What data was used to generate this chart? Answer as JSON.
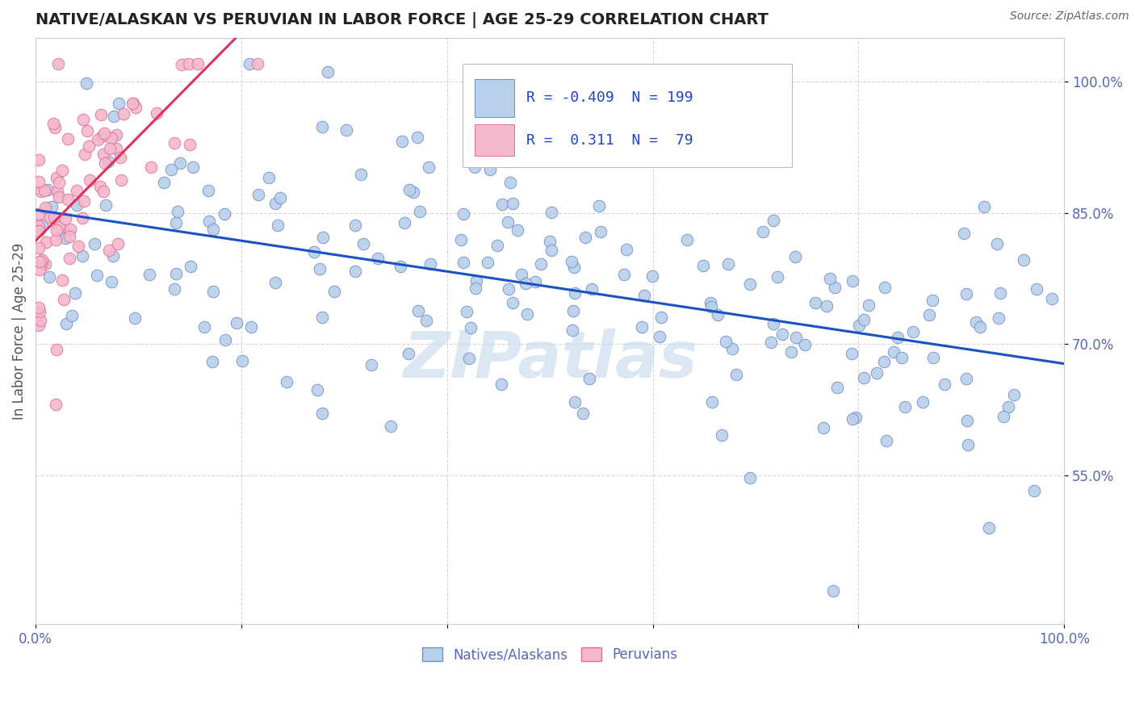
{
  "title": "NATIVE/ALASKAN VS PERUVIAN IN LABOR FORCE | AGE 25-29 CORRELATION CHART",
  "source": "Source: ZipAtlas.com",
  "ylabel": "In Labor Force | Age 25-29",
  "xlim": [
    0.0,
    1.0
  ],
  "ylim": [
    0.38,
    1.05
  ],
  "xtick_vals": [
    0.0,
    0.2,
    0.4,
    0.6,
    0.8,
    1.0
  ],
  "xtick_labels": [
    "0.0%",
    "",
    "",
    "",
    "",
    "100.0%"
  ],
  "ytick_vals": [
    0.55,
    0.7,
    0.85,
    1.0
  ],
  "ytick_labels": [
    "55.0%",
    "70.0%",
    "85.0%",
    "100.0%"
  ],
  "blue_color": "#b8d0ea",
  "pink_color": "#f4b8cc",
  "blue_edge": "#7090c8",
  "pink_edge": "#e07090",
  "trend_blue": "#1a52c4",
  "trend_pink": "#e03060",
  "R_blue": -0.409,
  "N_blue": 199,
  "R_pink": 0.311,
  "N_pink": 79,
  "legend_label_blue": "Natives/Alaskans",
  "legend_label_pink": "Peruvians",
  "watermark": "ZIPatlas",
  "background_color": "#ffffff",
  "grid_color": "#cccccc",
  "title_color": "#222222",
  "axis_label_color": "#555555",
  "tick_label_color": "#5566bb",
  "legend_R_color": "#2244cc",
  "legend_label_color": "#000000"
}
